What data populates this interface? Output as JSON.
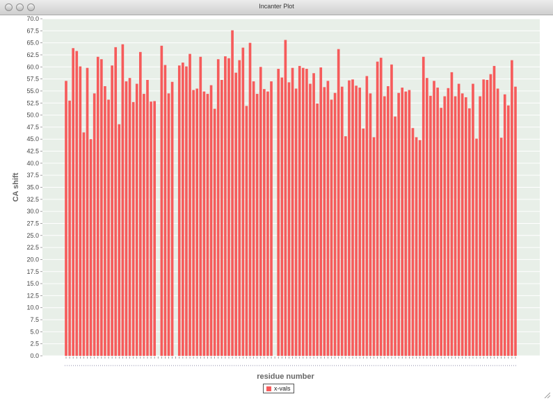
{
  "window": {
    "title": "Incanter Plot",
    "accent": "#f65b5b",
    "plot_background": "#e8efe8",
    "grid_color": "#ffffff"
  },
  "chart_data": {
    "type": "bar",
    "xlabel": "residue number",
    "ylabel": "CA shift",
    "ylim": [
      0,
      70
    ],
    "ytick_step": 2.5,
    "yticks": [
      "0.0",
      "2.5",
      "5.0",
      "7.5",
      "10.0",
      "12.5",
      "15.0",
      "17.5",
      "20.0",
      "22.5",
      "25.0",
      "27.5",
      "30.0",
      "32.5",
      "35.0",
      "37.5",
      "40.0",
      "42.5",
      "45.0",
      "47.5",
      "50.0",
      "52.5",
      "55.0",
      "57.5",
      "60.0",
      "62.5",
      "65.0",
      "67.5",
      "70.0"
    ],
    "grid": true,
    "legend_position": "bottom",
    "series": [
      {
        "name": "x-vals",
        "color": "#f65b5b",
        "values": [
          57.1,
          53.0,
          63.9,
          63.3,
          60.1,
          46.4,
          59.8,
          45.0,
          54.5,
          62.1,
          61.6,
          56.0,
          53.2,
          60.3,
          64.1,
          48.1,
          64.7,
          57.0,
          57.7,
          52.7,
          56.5,
          63.1,
          54.4,
          57.3,
          52.8,
          52.9,
          0,
          64.4,
          60.4,
          54.5,
          56.9,
          0,
          60.3,
          60.9,
          60.1,
          62.7,
          55.2,
          55.5,
          62.1,
          54.9,
          54.4,
          56.2,
          51.3,
          61.6,
          57.3,
          62.2,
          61.8,
          67.6,
          58.8,
          61.4,
          64.0,
          51.9,
          65.0,
          57.0,
          54.4,
          60.0,
          55.4,
          54.9,
          57.0,
          0,
          59.6,
          57.8,
          65.6,
          56.8,
          59.8,
          55.5,
          60.2,
          59.8,
          59.6,
          56.5,
          58.7,
          52.4,
          59.9,
          55.8,
          57.1,
          53.2,
          54.6,
          63.7,
          55.9,
          45.6,
          57.2,
          57.4,
          56.1,
          55.7,
          47.2,
          58.1,
          54.5,
          45.4,
          61.1,
          61.9,
          53.9,
          56.0,
          60.5,
          49.7,
          54.6,
          55.7,
          54.9,
          55.2,
          47.3,
          45.4,
          44.8,
          62.1,
          57.7,
          54.0,
          57.1,
          55.7,
          51.5,
          53.9,
          55.6,
          58.9,
          53.9,
          56.5,
          54.5,
          53.7,
          51.4,
          56.5,
          45.1,
          53.9,
          57.4,
          57.3,
          58.5,
          60.2,
          55.5,
          45.3,
          54.3,
          52.0,
          61.4,
          55.9
        ]
      }
    ]
  }
}
